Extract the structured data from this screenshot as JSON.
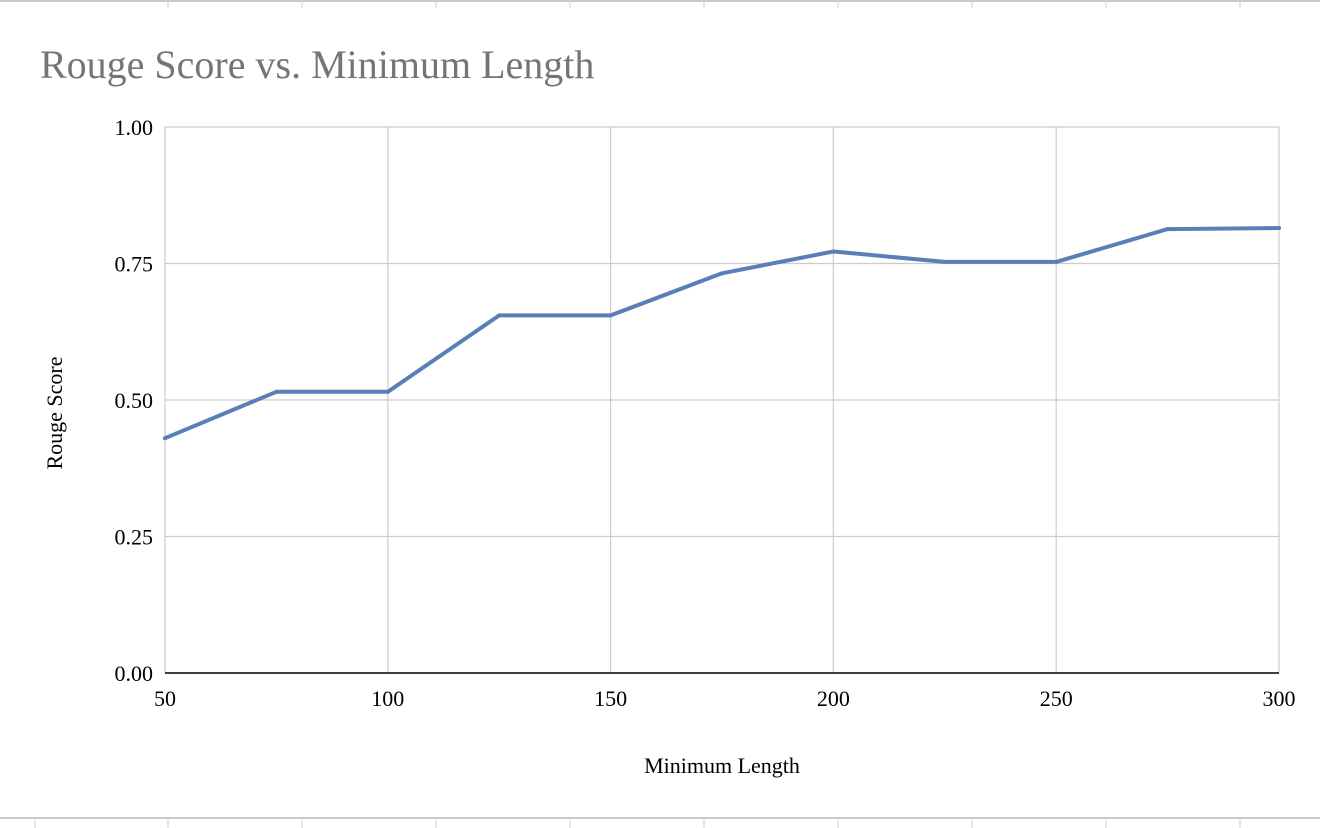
{
  "chart_data": {
    "type": "line",
    "title": "Rouge Score vs. Minimum Length",
    "xlabel": "Minimum Length",
    "ylabel": "Rouge Score",
    "xlim": [
      50,
      300
    ],
    "ylim": [
      0,
      1
    ],
    "x_ticks": [
      "50",
      "100",
      "150",
      "200",
      "250",
      "300"
    ],
    "y_ticks": [
      "0.00",
      "0.25",
      "0.50",
      "0.75",
      "1.00"
    ],
    "grid": true,
    "legend": "none",
    "series": [
      {
        "color": "#5a7fb8",
        "x": [
          50,
          75,
          100,
          125,
          150,
          175,
          200,
          225,
          250,
          275,
          300
        ],
        "values": [
          0.43,
          0.515,
          0.515,
          0.655,
          0.655,
          0.732,
          0.772,
          0.753,
          0.753,
          0.813,
          0.815
        ]
      }
    ]
  }
}
